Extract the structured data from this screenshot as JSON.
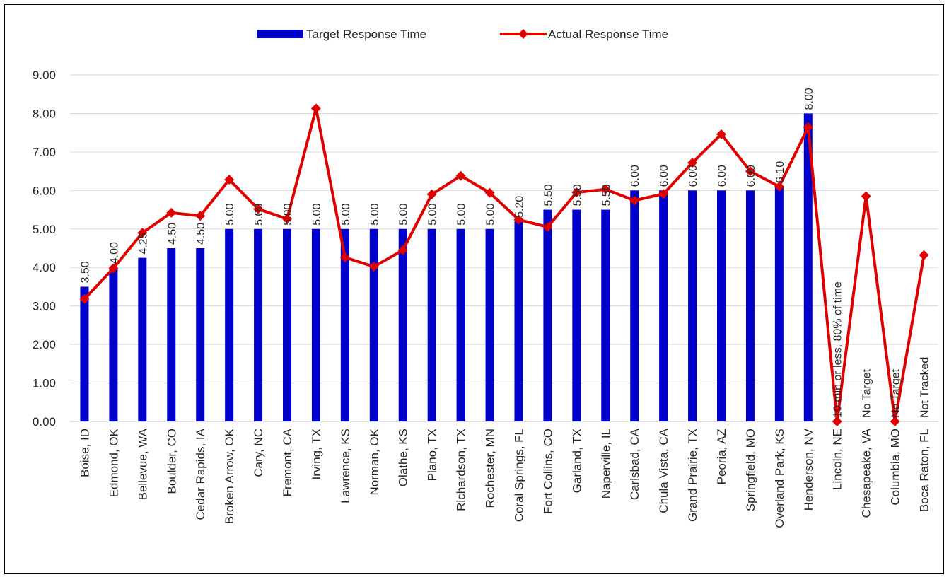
{
  "chart_data": {
    "type": "bar",
    "title": "",
    "xlabel": "",
    "ylabel": "",
    "ylim": [
      0,
      9
    ],
    "yticks": [
      "0.00",
      "1.00",
      "2.00",
      "3.00",
      "4.00",
      "5.00",
      "6.00",
      "7.00",
      "8.00",
      "9.00"
    ],
    "grid": true,
    "legend": "top",
    "categories": [
      "Boise, ID",
      "Edmond, OK",
      "Bellevue, WA",
      "Boulder, CO",
      "Cedar Rapids, IA",
      "Broken Arrow, OK",
      "Cary, NC",
      "Fremont, CA",
      "Irving, TX",
      "Lawrence, KS",
      "Norman, OK",
      "Olathe, KS",
      "Plano, TX",
      "Richardson, TX",
      "Rochester, MN",
      "Coral Springs, FL",
      "Fort Collins, CO",
      "Garland, TX",
      "Naperville, IL",
      "Carlsbad, CA",
      "Chula Vista, CA",
      "Grand Prairie, TX",
      "Peoria, AZ",
      "Springfield, MO",
      "Overland Park, KS",
      "Henderson, NV",
      "Lincoln, NE",
      "Chesapeake, VA",
      "Columbia, MO",
      "Boca Raton, FL"
    ],
    "series": [
      {
        "name": "Target Response Time",
        "kind": "bar",
        "color": "#0000CC",
        "values": [
          3.5,
          4.0,
          4.25,
          4.5,
          4.5,
          5.0,
          5.0,
          5.0,
          5.0,
          5.0,
          5.0,
          5.0,
          5.0,
          5.0,
          5.0,
          5.2,
          5.5,
          5.5,
          5.5,
          6.0,
          6.0,
          6.0,
          6.0,
          6.0,
          6.1,
          8.0,
          null,
          null,
          null,
          null
        ],
        "labels": [
          "3.50",
          "4.00",
          "4.25",
          "4.50",
          "4.50",
          "5.00",
          "5.00",
          "5.00",
          "5.00",
          "5.00",
          "5.00",
          "5.00",
          "5.00",
          "5.00",
          "5.00",
          "5.20",
          "5.50",
          "5.50",
          "5.50",
          "6.00",
          "6.00",
          "6.00",
          "6.00",
          "6.00",
          "6.10",
          "8.00",
          "10 min or less, 80% of time",
          "No Target",
          "No Target",
          "Not Tracked"
        ]
      },
      {
        "name": "Actual Response Time",
        "kind": "line",
        "color": "#E00000",
        "values": [
          3.18,
          3.98,
          4.9,
          5.42,
          5.34,
          6.28,
          5.52,
          5.26,
          8.13,
          4.26,
          4.02,
          4.45,
          5.9,
          6.38,
          5.94,
          5.24,
          5.05,
          5.95,
          6.03,
          5.74,
          5.91,
          6.72,
          7.46,
          6.5,
          6.1,
          7.64,
          0.0,
          5.85,
          0.0,
          4.32
        ]
      }
    ]
  }
}
